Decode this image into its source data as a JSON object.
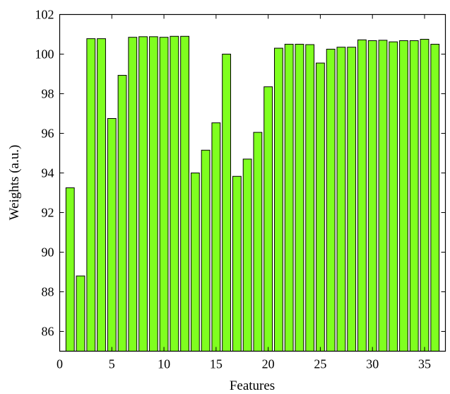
{
  "chart_data": {
    "type": "bar",
    "title": "",
    "xlabel": "Features",
    "ylabel": "Weights (a.u.)",
    "xlim": [
      0,
      37
    ],
    "ylim": [
      85,
      102
    ],
    "xticks": [
      0,
      5,
      10,
      15,
      20,
      25,
      30,
      35
    ],
    "yticks": [
      86,
      88,
      90,
      92,
      94,
      96,
      98,
      100,
      102
    ],
    "grid": false,
    "categories": [
      1,
      2,
      3,
      4,
      5,
      6,
      7,
      8,
      9,
      10,
      11,
      12,
      13,
      14,
      15,
      16,
      17,
      18,
      19,
      20,
      21,
      22,
      23,
      24,
      25,
      26,
      27,
      28,
      29,
      30,
      31,
      32,
      33,
      34,
      35,
      36
    ],
    "values": [
      93.25,
      88.8,
      100.78,
      100.78,
      96.75,
      98.93,
      100.85,
      100.88,
      100.88,
      100.85,
      100.9,
      100.9,
      94.0,
      95.15,
      96.53,
      100.0,
      93.83,
      94.7,
      96.05,
      98.35,
      100.3,
      100.5,
      100.5,
      100.48,
      99.55,
      100.25,
      100.35,
      100.35,
      100.72,
      100.68,
      100.7,
      100.62,
      100.68,
      100.68,
      100.75,
      100.5
    ],
    "bar_color": "#7fff1f"
  }
}
